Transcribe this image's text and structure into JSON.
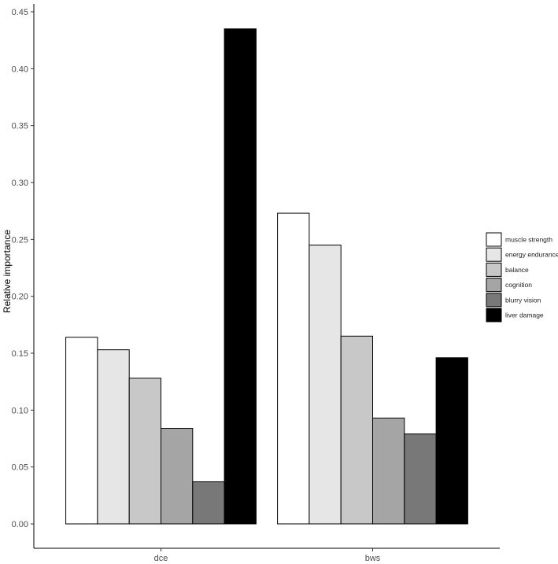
{
  "chart_data": {
    "type": "bar",
    "title": "",
    "xlabel": "",
    "ylabel": "Relative importance",
    "categories": [
      "dce",
      "bws"
    ],
    "ylim": [
      0,
      0.45
    ],
    "yticks": [
      0.0,
      0.05,
      0.1,
      0.15,
      0.2,
      0.25,
      0.3,
      0.35,
      0.4,
      0.45
    ],
    "ytick_labels": [
      "0.00",
      "0.05",
      "0.10",
      "0.15",
      "0.20",
      "0.25",
      "0.30",
      "0.35",
      "0.40",
      "0.45"
    ],
    "grid": false,
    "legend_position": "right",
    "series": [
      {
        "name": "muscle strength",
        "color": "#ffffff",
        "values": [
          0.164,
          0.273
        ]
      },
      {
        "name": "energy endurance",
        "color": "#e6e6e6",
        "values": [
          0.153,
          0.245
        ]
      },
      {
        "name": "balance",
        "color": "#c8c8c8",
        "values": [
          0.128,
          0.165
        ]
      },
      {
        "name": "cognition",
        "color": "#a5a5a5",
        "values": [
          0.084,
          0.093
        ]
      },
      {
        "name": "blurry vision",
        "color": "#787878",
        "values": [
          0.037,
          0.079
        ]
      },
      {
        "name": "liver damage",
        "color": "#000000",
        "values": [
          0.435,
          0.146
        ]
      }
    ]
  }
}
